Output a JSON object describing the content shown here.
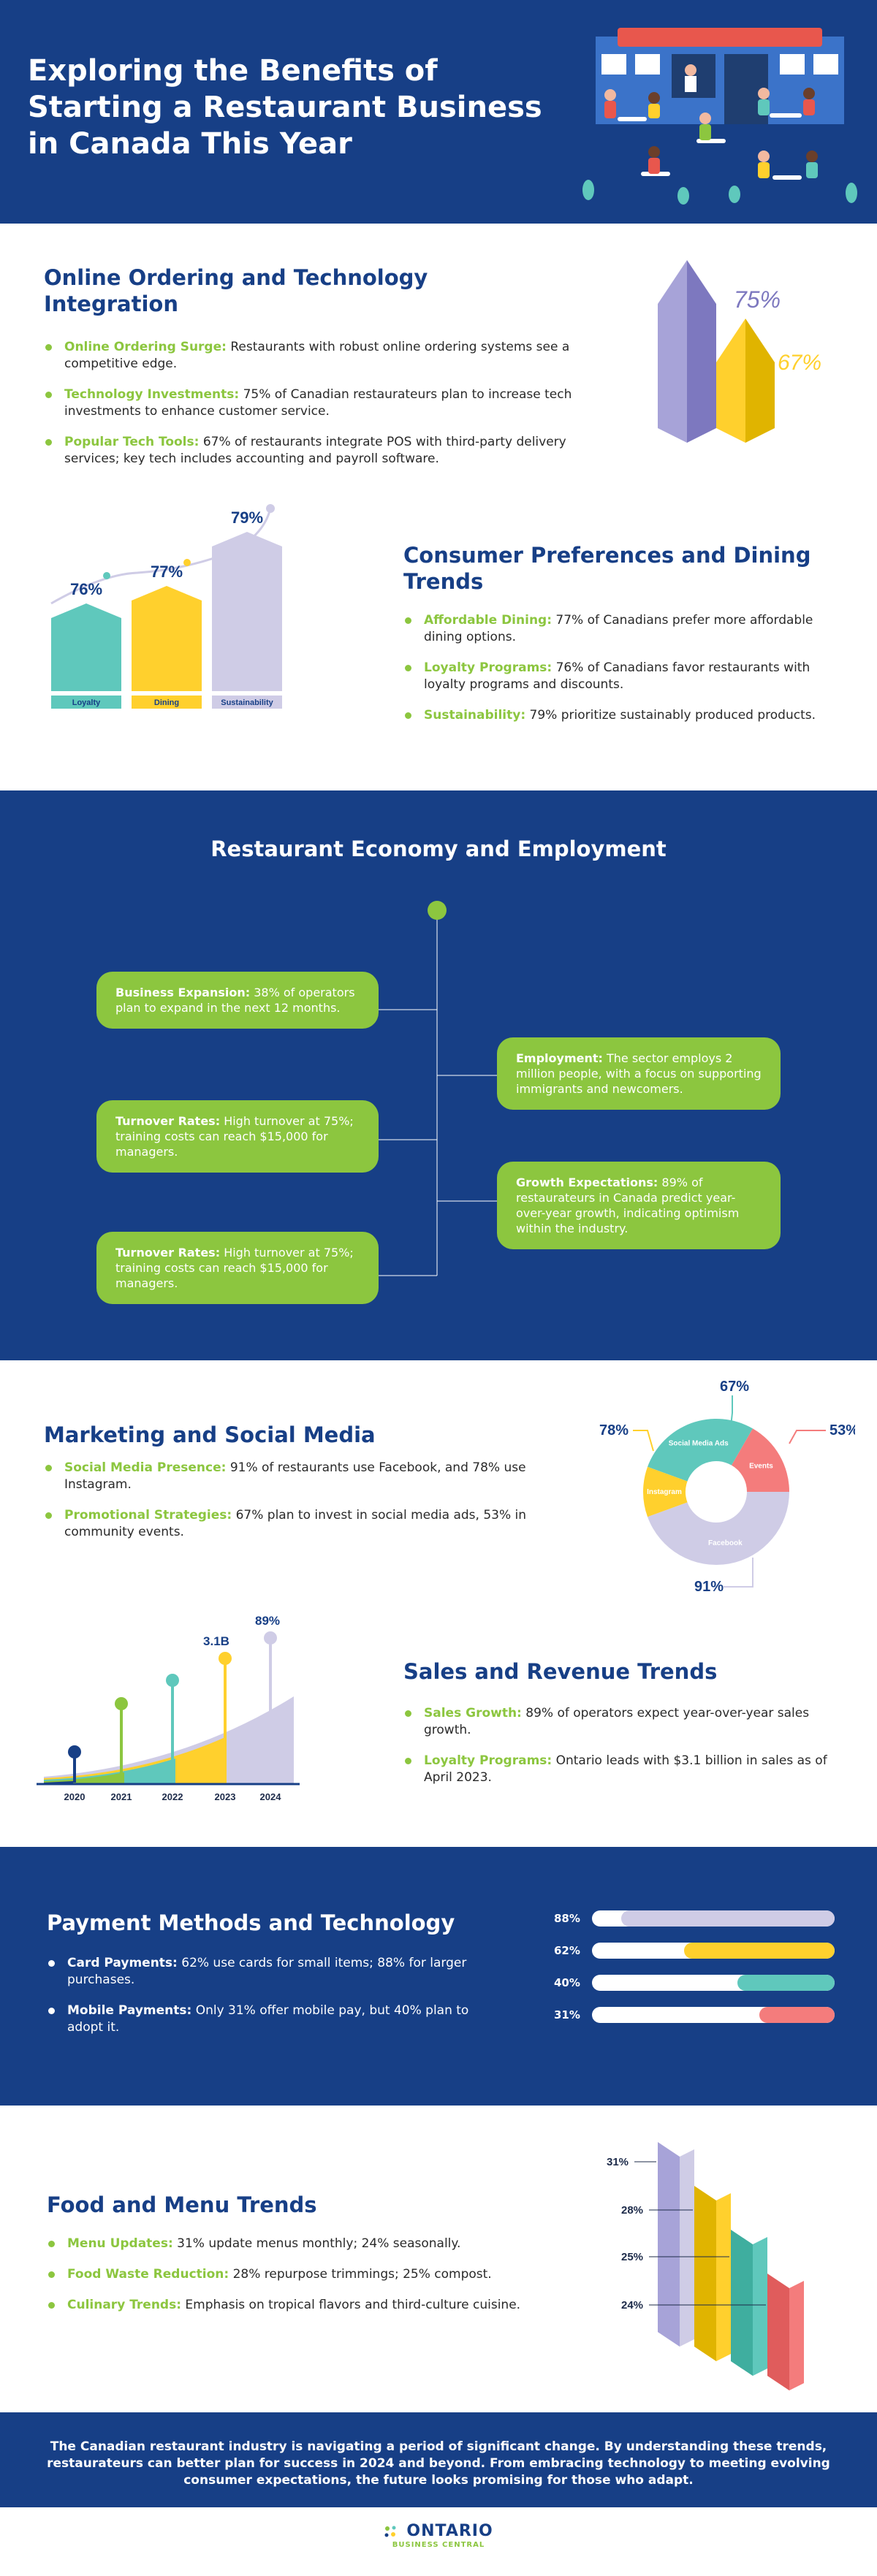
{
  "header": {
    "title": "Exploring the Benefits of Starting a Restaurant Business in Canada This Year"
  },
  "online": {
    "title": "Online Ordering and Technology Integration",
    "items": [
      {
        "label": "Online Ordering Surge:",
        "text": " Restaurants with robust online ordering systems see a competitive edge."
      },
      {
        "label": "Technology Investments:",
        "text": " 75% of Canadian restaurateurs plan to increase tech investments to enhance customer service."
      },
      {
        "label": "Popular Tech Tools:",
        "text": " 67% of restaurants integrate POS with third-party delivery services; key tech includes accounting and payroll software."
      }
    ],
    "pct_a": "75%",
    "pct_b": "67%"
  },
  "consumer": {
    "title": "Consumer Preferences and Dining Trends",
    "items": [
      {
        "label": "Affordable Dining:",
        "text": " 77% of Canadians prefer more affordable dining options."
      },
      {
        "label": "Loyalty Programs:",
        "text": " 76% of Canadians favor restaurants with loyalty programs and discounts."
      },
      {
        "label": "Sustainability:",
        "text": " 79% prioritize sustainably produced products."
      }
    ],
    "bars": [
      {
        "label": "Loyalty",
        "value": "76%",
        "num": 76,
        "color": "#5fc8bc"
      },
      {
        "label": "Dining",
        "value": "77%",
        "num": 77,
        "color": "#ffd02d"
      },
      {
        "label": "Sustainability",
        "value": "79%",
        "num": 79,
        "color": "#cfcce6"
      }
    ]
  },
  "economy": {
    "title": "Restaurant Economy and Employment",
    "boxes": [
      {
        "label": "Business Expansion:",
        "text": " 38% of operators plan to expand in the next 12 months."
      },
      {
        "label": "Employment:",
        "text": " The sector employs 2 million people, with a focus on supporting immigrants and newcomers."
      },
      {
        "label": "Turnover Rates:",
        "text": " High turnover at 75%; training costs can reach $15,000 for managers."
      },
      {
        "label": "Growth Expectations:",
        "text": " 89% of restaurateurs in Canada predict year-over-year growth, indicating optimism within the industry."
      },
      {
        "label": "Turnover Rates:",
        "text": " High turnover at 75%; training costs can reach $15,000 for managers."
      }
    ]
  },
  "marketing": {
    "title": "Marketing and Social Media",
    "items": [
      {
        "label": "Social Media Presence:",
        "text": " 91% of restaurants use Facebook, and 78% use Instagram."
      },
      {
        "label": "Promotional Strategies:",
        "text": " 67% plan to invest in social media ads, 53% in community events."
      }
    ],
    "donut": [
      {
        "label": "Social Media Ads",
        "value": "67%",
        "color": "#5fc8bc"
      },
      {
        "label": "Events",
        "value": "53%",
        "color": "#f47c7c"
      },
      {
        "label": "Facebook",
        "value": "91%",
        "color": "#cfcce6"
      },
      {
        "label": "Instagram",
        "value": "78%",
        "color": "#ffd02d"
      }
    ]
  },
  "sales": {
    "title": "Sales and Revenue Trends",
    "items": [
      {
        "label": "Sales Growth:",
        "text": "  89% of operators expect year-over-year sales growth."
      },
      {
        "label": "Loyalty Programs:",
        "text": "  Ontario leads with $3.1 billion in sales as of April 2023."
      }
    ],
    "years": [
      "2020",
      "2021",
      "2022",
      "2023",
      "2024"
    ],
    "label_2023": "3.1B",
    "label_2024": "89%"
  },
  "payments": {
    "title": "Payment Methods and Technology",
    "items": [
      {
        "label": "Card Payments:",
        "text": "  62% use cards for small items; 88% for larger purchases."
      },
      {
        "label": "Mobile Payments:",
        "text": "  Only 31% offer mobile pay, but 40% plan to adopt it."
      }
    ],
    "bars": [
      {
        "label": "88%",
        "value": 88,
        "color": "#cfcce6"
      },
      {
        "label": "62%",
        "value": 62,
        "color": "#ffd02d"
      },
      {
        "label": "40%",
        "value": 40,
        "color": "#5fc8bc"
      },
      {
        "label": "31%",
        "value": 31,
        "color": "#f47c7c"
      }
    ]
  },
  "food": {
    "title": "Food and Menu Trends",
    "items": [
      {
        "label": "Menu Updates:",
        "text": " 31% update menus monthly; 24% seasonally."
      },
      {
        "label": "Food Waste Reduction:",
        "text": " 28% repurpose trimmings; 25% compost."
      },
      {
        "label": "Culinary Trends:",
        "text": " Emphasis on tropical flavors and third-culture cuisine."
      }
    ],
    "labels": [
      "31%",
      "28%",
      "25%",
      "24%"
    ]
  },
  "footer": {
    "text": "The Canadian restaurant industry is navigating a period of significant change. By understanding these trends, restaurateurs can better plan for success in 2024 and beyond. From embracing technology to meeting evolving consumer expectations, the future looks promising for those who adapt.",
    "logo_main": "ONTARIO",
    "logo_sub": "BUSINESS CENTRAL"
  },
  "colors": {
    "navy": "#173f86",
    "green": "#8cc63f",
    "teal": "#5fc8bc",
    "yellow": "#ffd02d",
    "lavender": "#cfcce6",
    "coral": "#f47c7c"
  }
}
